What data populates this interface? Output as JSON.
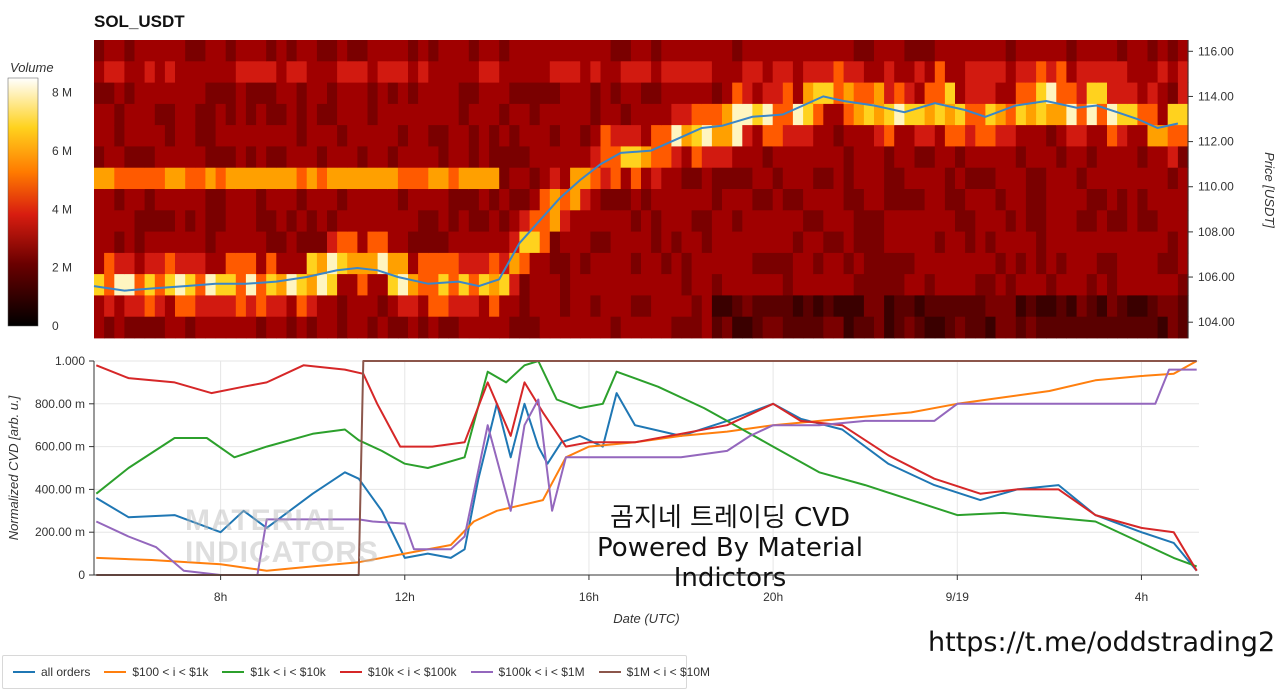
{
  "title": "SOL_USDT",
  "overlay_text": {
    "line1": "곰지네 트레이딩 CVD",
    "line2": "Powered By Material Indictors"
  },
  "url_text": "https://t.me/oddstrading2",
  "watermark": {
    "line1": "MATERIAL",
    "line2": "INDICATORS"
  },
  "chart_data": [
    {
      "type": "heatmap",
      "title": "SOL_USDT",
      "ylabel": "Price [USDT]",
      "yticks": [
        "104.00",
        "106.00",
        "108.00",
        "110.00",
        "112.00",
        "114.00",
        "116.00"
      ],
      "ylim": [
        103.3,
        116.5
      ],
      "colorbar": {
        "label": "Volume",
        "ticks": [
          "0",
          "2 M",
          "4 M",
          "6 M",
          "8 M"
        ],
        "range": [
          0,
          8500000
        ]
      },
      "price_line_color": "#3a86c8",
      "price_series": [
        [
          0,
          105.6
        ],
        [
          3,
          105.4
        ],
        [
          6,
          105.5
        ],
        [
          9,
          105.6
        ],
        [
          12,
          105.7
        ],
        [
          15,
          105.7
        ],
        [
          18,
          105.8
        ],
        [
          21,
          106.0
        ],
        [
          24,
          106.3
        ],
        [
          26,
          106.4
        ],
        [
          28,
          106.3
        ],
        [
          30,
          106.0
        ],
        [
          33,
          105.7
        ],
        [
          36,
          105.8
        ],
        [
          38,
          105.6
        ],
        [
          40,
          105.9
        ],
        [
          42,
          107.5
        ],
        [
          44,
          108.5
        ],
        [
          46,
          109.5
        ],
        [
          48,
          110.3
        ],
        [
          50,
          111.0
        ],
        [
          52,
          111.5
        ],
        [
          55,
          111.6
        ],
        [
          58,
          112.2
        ],
        [
          60,
          112.6
        ],
        [
          62,
          112.7
        ],
        [
          65,
          113.1
        ],
        [
          68,
          113.2
        ],
        [
          70,
          113.6
        ],
        [
          72,
          114.0
        ],
        [
          74,
          113.8
        ],
        [
          77,
          113.6
        ],
        [
          80,
          113.3
        ],
        [
          83,
          113.7
        ],
        [
          86,
          113.4
        ],
        [
          88,
          113.1
        ],
        [
          91,
          113.6
        ],
        [
          94,
          113.8
        ],
        [
          97,
          113.5
        ],
        [
          99,
          113.6
        ],
        [
          101,
          113.3
        ],
        [
          103,
          113.0
        ],
        [
          105,
          112.6
        ],
        [
          107,
          112.8
        ]
      ]
    },
    {
      "type": "line",
      "xlabel": "Date (UTC)",
      "ylabel": "Normalized CVD [arb. u.]",
      "ylim": [
        0,
        1
      ],
      "yticks": [
        "0",
        "200.00 m",
        "400.00 m",
        "600.00 m",
        "800.00 m",
        "1.000"
      ],
      "xticks": [
        "8h",
        "12h",
        "16h",
        "20h",
        "9/19",
        "4h"
      ],
      "xlim": [
        5.25,
        29.25
      ],
      "series": [
        {
          "name": "all orders",
          "color": "#1f77b4",
          "points": [
            [
              5.3,
              0.36
            ],
            [
              6,
              0.27
            ],
            [
              7,
              0.28
            ],
            [
              8,
              0.2
            ],
            [
              8.5,
              0.3
            ],
            [
              9,
              0.22
            ],
            [
              10,
              0.38
            ],
            [
              10.7,
              0.48
            ],
            [
              11,
              0.45
            ],
            [
              11.5,
              0.3
            ],
            [
              12,
              0.08
            ],
            [
              12.5,
              0.1
            ],
            [
              13,
              0.08
            ],
            [
              13.3,
              0.12
            ],
            [
              13.6,
              0.45
            ],
            [
              14,
              0.8
            ],
            [
              14.3,
              0.55
            ],
            [
              14.6,
              0.8
            ],
            [
              14.9,
              0.6
            ],
            [
              15.1,
              0.52
            ],
            [
              15.4,
              0.62
            ],
            [
              15.8,
              0.65
            ],
            [
              16.3,
              0.6
            ],
            [
              16.6,
              0.85
            ],
            [
              17,
              0.7
            ],
            [
              18,
              0.65
            ],
            [
              19,
              0.72
            ],
            [
              20,
              0.8
            ],
            [
              20.6,
              0.73
            ],
            [
              21.5,
              0.68
            ],
            [
              22.5,
              0.52
            ],
            [
              23.5,
              0.42
            ],
            [
              24.5,
              0.35
            ],
            [
              25.3,
              0.4
            ],
            [
              26.2,
              0.42
            ],
            [
              27,
              0.28
            ],
            [
              28,
              0.2
            ],
            [
              28.7,
              0.15
            ],
            [
              29.2,
              0.02
            ]
          ]
        },
        {
          "name": "$100 < i < $1k",
          "color": "#ff7f0e",
          "points": [
            [
              5.3,
              0.08
            ],
            [
              6.5,
              0.07
            ],
            [
              8,
              0.05
            ],
            [
              9,
              0.02
            ],
            [
              10,
              0.04
            ],
            [
              11,
              0.06
            ],
            [
              12,
              0.1
            ],
            [
              13,
              0.14
            ],
            [
              13.5,
              0.25
            ],
            [
              14,
              0.3
            ],
            [
              15,
              0.35
            ],
            [
              15.5,
              0.55
            ],
            [
              16,
              0.6
            ],
            [
              17,
              0.62
            ],
            [
              18,
              0.65
            ],
            [
              19,
              0.67
            ],
            [
              20,
              0.7
            ],
            [
              21,
              0.72
            ],
            [
              22,
              0.74
            ],
            [
              23,
              0.76
            ],
            [
              24,
              0.8
            ],
            [
              25,
              0.83
            ],
            [
              26,
              0.86
            ],
            [
              27,
              0.91
            ],
            [
              28,
              0.93
            ],
            [
              28.7,
              0.94
            ],
            [
              29.2,
              1.0
            ]
          ]
        },
        {
          "name": "$1k < i < $10k",
          "color": "#2ca02c",
          "points": [
            [
              5.3,
              0.38
            ],
            [
              6,
              0.5
            ],
            [
              7,
              0.64
            ],
            [
              7.7,
              0.64
            ],
            [
              8.3,
              0.55
            ],
            [
              9,
              0.6
            ],
            [
              10,
              0.66
            ],
            [
              10.7,
              0.68
            ],
            [
              11,
              0.63
            ],
            [
              11.5,
              0.58
            ],
            [
              12,
              0.52
            ],
            [
              12.5,
              0.5
            ],
            [
              13.3,
              0.55
            ],
            [
              13.8,
              0.95
            ],
            [
              14.2,
              0.9
            ],
            [
              14.6,
              0.98
            ],
            [
              14.9,
              1.0
            ],
            [
              15.3,
              0.82
            ],
            [
              15.8,
              0.78
            ],
            [
              16.3,
              0.8
            ],
            [
              16.6,
              0.95
            ],
            [
              17.5,
              0.88
            ],
            [
              18.5,
              0.78
            ],
            [
              19,
              0.72
            ],
            [
              20,
              0.6
            ],
            [
              21,
              0.48
            ],
            [
              22,
              0.42
            ],
            [
              23,
              0.35
            ],
            [
              24,
              0.28
            ],
            [
              25,
              0.29
            ],
            [
              26,
              0.27
            ],
            [
              27,
              0.25
            ],
            [
              28,
              0.15
            ],
            [
              28.7,
              0.08
            ],
            [
              29.2,
              0.04
            ]
          ]
        },
        {
          "name": "$10k < i < $100k",
          "color": "#d62728",
          "points": [
            [
              5.3,
              0.98
            ],
            [
              6,
              0.92
            ],
            [
              7,
              0.9
            ],
            [
              7.8,
              0.85
            ],
            [
              8.5,
              0.88
            ],
            [
              9,
              0.9
            ],
            [
              9.8,
              0.98
            ],
            [
              10.7,
              0.96
            ],
            [
              11.1,
              0.94
            ],
            [
              11.4,
              0.8
            ],
            [
              11.9,
              0.6
            ],
            [
              12.6,
              0.6
            ],
            [
              13.3,
              0.62
            ],
            [
              13.8,
              0.9
            ],
            [
              14.3,
              0.65
            ],
            [
              14.6,
              0.9
            ],
            [
              15,
              0.76
            ],
            [
              15.5,
              0.6
            ],
            [
              16,
              0.62
            ],
            [
              17,
              0.62
            ],
            [
              18,
              0.66
            ],
            [
              19,
              0.7
            ],
            [
              20,
              0.8
            ],
            [
              20.6,
              0.72
            ],
            [
              21.5,
              0.7
            ],
            [
              22.5,
              0.56
            ],
            [
              23.5,
              0.45
            ],
            [
              24.5,
              0.38
            ],
            [
              25.3,
              0.4
            ],
            [
              26.2,
              0.4
            ],
            [
              27,
              0.28
            ],
            [
              28,
              0.22
            ],
            [
              28.7,
              0.2
            ],
            [
              29.2,
              0.02
            ]
          ]
        },
        {
          "name": "$100k < i < $1M",
          "color": "#9467bd",
          "points": [
            [
              5.3,
              0.25
            ],
            [
              6,
              0.18
            ],
            [
              6.6,
              0.13
            ],
            [
              7.2,
              0.02
            ],
            [
              8,
              0.0
            ],
            [
              8.8,
              0.0
            ],
            [
              9,
              0.26
            ],
            [
              10,
              0.26
            ],
            [
              11,
              0.26
            ],
            [
              11.3,
              0.25
            ],
            [
              12,
              0.24
            ],
            [
              12.2,
              0.12
            ],
            [
              13,
              0.12
            ],
            [
              13.3,
              0.18
            ],
            [
              13.8,
              0.7
            ],
            [
              14.3,
              0.3
            ],
            [
              14.6,
              0.7
            ],
            [
              14.9,
              0.82
            ],
            [
              15.2,
              0.3
            ],
            [
              15.5,
              0.55
            ],
            [
              16,
              0.55
            ],
            [
              17,
              0.55
            ],
            [
              18,
              0.55
            ],
            [
              19,
              0.58
            ],
            [
              19.5,
              0.65
            ],
            [
              20,
              0.7
            ],
            [
              21,
              0.7
            ],
            [
              22,
              0.72
            ],
            [
              22.8,
              0.72
            ],
            [
              23.5,
              0.72
            ],
            [
              24,
              0.8
            ],
            [
              25,
              0.8
            ],
            [
              26,
              0.8
            ],
            [
              27,
              0.8
            ],
            [
              28,
              0.8
            ],
            [
              28.3,
              0.8
            ],
            [
              28.6,
              0.96
            ],
            [
              29.2,
              0.96
            ]
          ]
        },
        {
          "name": "$1M < i < $10M",
          "color": "#8c564b",
          "points": [
            [
              5.3,
              0.0
            ],
            [
              11.0,
              0.0
            ],
            [
              11.1,
              1.0
            ],
            [
              29.2,
              1.0
            ]
          ]
        }
      ]
    }
  ]
}
